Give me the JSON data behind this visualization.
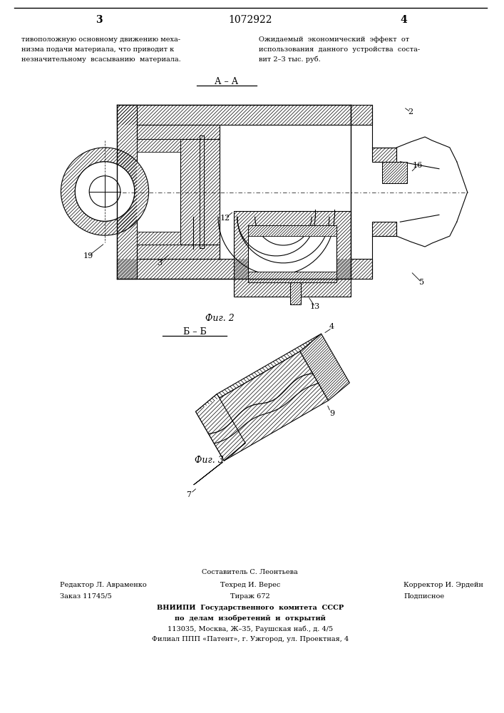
{
  "page_number_left": "3",
  "page_number_right": "4",
  "patent_number": "1072922",
  "bg_color": "#ffffff",
  "text_color": "#000000",
  "left_column_text": [
    "тивоположную основному движению меха-",
    "низма подачи материала, что приводит к",
    "незначительному  всасыванию  материала."
  ],
  "right_column_text": [
    "Ожидаемый  экономический  эффект  от",
    "использования  данного  устройства  соста-",
    "вит 2–3 тыс. руб."
  ],
  "fig2_label": "Фиг. 2",
  "fig2_section_label": "А – А",
  "fig3_label": "Фиг. 3",
  "fig3_section_label": "Б – Б",
  "footer_line1": "Составитель С. Леонтьева",
  "footer_line2_left": "Редактор Л. Авраменко",
  "footer_line2_mid": "Техред И. Верес",
  "footer_line2_right": "Корректор И. Эрдейн",
  "footer_line3_left": "Заказ 11745/5",
  "footer_line3_mid": "Тираж 672",
  "footer_line3_right": "Подписное",
  "footer_line4": "ВНИИПИ  Государственного  комитета  СССР",
  "footer_line5": "по  делам  изобретений  и  открытий",
  "footer_line6": "113035, Москва, Ж–35, Раушская наб., д. 4/5",
  "footer_line7": "Филиал ППП «Патент», г. Ужгород, ул. Проектная, 4"
}
